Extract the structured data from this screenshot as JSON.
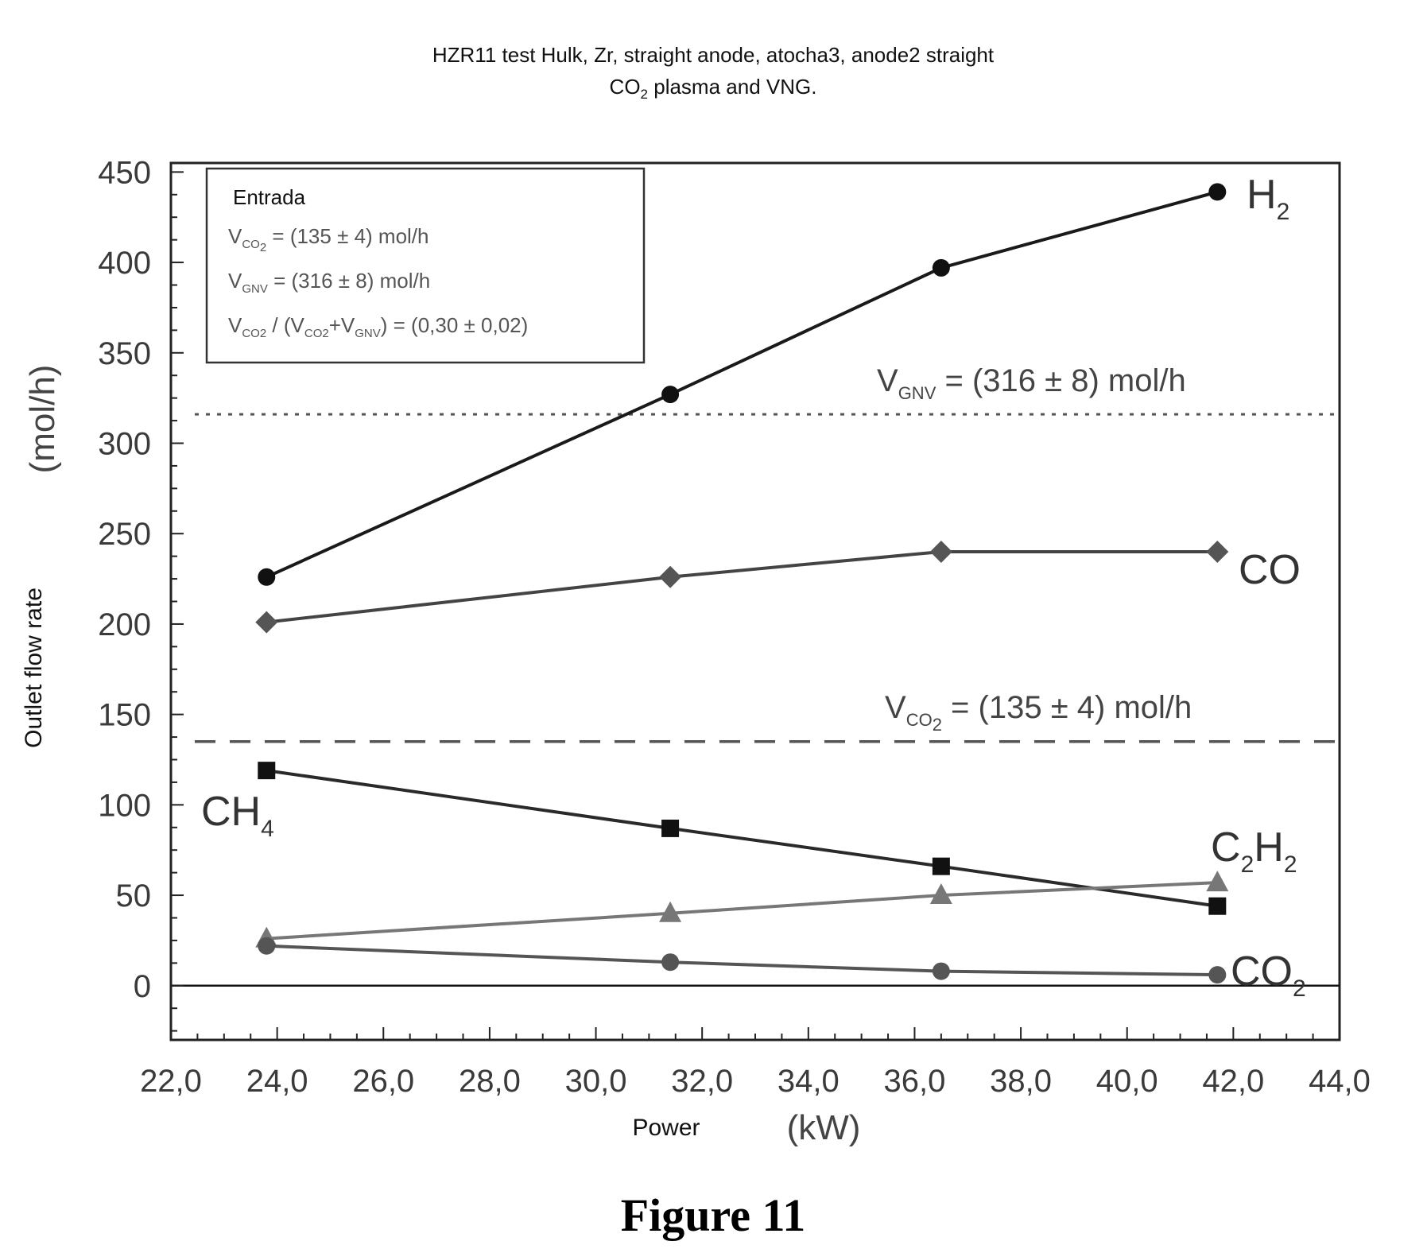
{
  "title_line1": "HZR11 test Hulk, Zr, straight anode, atocha3, anode2 straight",
  "title_line2_main": "CO",
  "title_line2_sub": "2",
  "title_line2_rest": " plasma and VNG.",
  "caption": "Figure 11",
  "chart_data": {
    "type": "line",
    "xlabel_word": "Power",
    "xlabel_unit": "(kW)",
    "ylabel_word": "Outlet flow rate",
    "ylabel_unit": "(mol/h)",
    "xlim": [
      22.0,
      44.0
    ],
    "ylim": [
      -30,
      455
    ],
    "x_ticks": [
      "22,0",
      "24,0",
      "26,0",
      "28,0",
      "30,0",
      "32,0",
      "34,0",
      "36,0",
      "38,0",
      "40,0",
      "42,0",
      "44,0"
    ],
    "x_tick_values": [
      22,
      24,
      26,
      28,
      30,
      32,
      34,
      36,
      38,
      40,
      42,
      44
    ],
    "y_ticks": [
      "450",
      "400",
      "350",
      "300",
      "250",
      "200",
      "150",
      "100",
      "50",
      "0"
    ],
    "y_tick_values": [
      450,
      400,
      350,
      300,
      250,
      200,
      150,
      100,
      50,
      0
    ],
    "x": [
      23.8,
      31.4,
      36.5,
      41.7
    ],
    "series": [
      {
        "name": "H",
        "sub": "2",
        "marker": "circle",
        "color": "#111111",
        "line_color": "#1a1a1a",
        "values": [
          226,
          327,
          397,
          439
        ]
      },
      {
        "name": "CO",
        "sub": "",
        "marker": "diamond",
        "color": "#555555",
        "line_color": "#444444",
        "values": [
          201,
          226,
          240,
          240
        ]
      },
      {
        "name": "CH",
        "sub": "4",
        "marker": "square",
        "color": "#111111",
        "line_color": "#2a2a2a",
        "values": [
          119,
          87,
          66,
          44
        ]
      },
      {
        "name": "C",
        "sub": "2",
        "name2": "H",
        "sub2": "2",
        "marker": "triangle",
        "color": "#777777",
        "line_color": "#777777",
        "values": [
          26,
          40,
          50,
          57
        ]
      },
      {
        "name": "CO",
        "sub": "2",
        "marker": "circle",
        "color": "#555555",
        "line_color": "#555555",
        "values": [
          22,
          13,
          8,
          6
        ]
      }
    ],
    "reference_lines": [
      {
        "value": 316,
        "style": "dotted",
        "label_main": "V",
        "label_sub": "GNV",
        "label_rest": " = (316 ± 8) mol/h"
      },
      {
        "value": 135,
        "style": "dashed",
        "label_main": "V",
        "label_sub": "CO",
        "label_sub2": "2",
        "label_rest": " = (135 ± 4) mol/h"
      }
    ],
    "legend": {
      "title": "Entrada",
      "line1": {
        "main": "V",
        "sub": "CO",
        "sub2": "2",
        "rest": " = (135 ± 4) mol/h"
      },
      "line2": {
        "main": "V",
        "sub": "GNV",
        "rest": " = (316 ± 8) mol/h"
      },
      "line3": {
        "main": "V",
        "sub": "CO2",
        "mid1": " / (V",
        "sub_b": "CO2",
        "mid2": "+V",
        "sub_c": "GNV",
        "rest": ") = (0,30 ± 0,02)"
      }
    }
  }
}
